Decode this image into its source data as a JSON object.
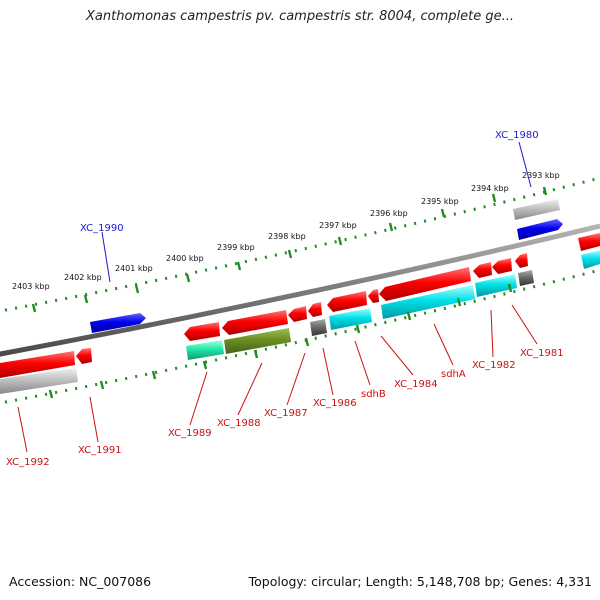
{
  "title": "Xanthomonas campestris pv. campestris str. 8004, complete ge...",
  "footer": {
    "accession_label": "Accession: NC_007086",
    "topology_label": "Topology: circular; Length: 5,148,708 bp; Genes: 4,331"
  },
  "colors": {
    "backbone": "#8a8a8a",
    "tick": "#228b22",
    "forward_label": "#1a1acc",
    "reverse_label": "#cc1111"
  },
  "kbp_labels": [
    "2403 kbp",
    "2402 kbp",
    "2401 kbp",
    "2400 kbp",
    "2399 kbp",
    "2398 kbp",
    "2397 kbp",
    "2396 kbp",
    "2395 kbp",
    "2394 kbp",
    "2393 kbp"
  ],
  "gene_labels": {
    "XC_1980": "XC_1980",
    "XC_1990": "XC_1990",
    "XC_1992": "XC_1992",
    "XC_1991": "XC_1991",
    "XC_1989": "XC_1989",
    "XC_1988": "XC_1988",
    "XC_1987": "XC_1987",
    "XC_1986": "XC_1986",
    "sdhB": "sdhB",
    "XC_1984": "XC_1984",
    "sdhA": "sdhA",
    "XC_1982": "XC_1982",
    "XC_1981": "XC_1981"
  }
}
